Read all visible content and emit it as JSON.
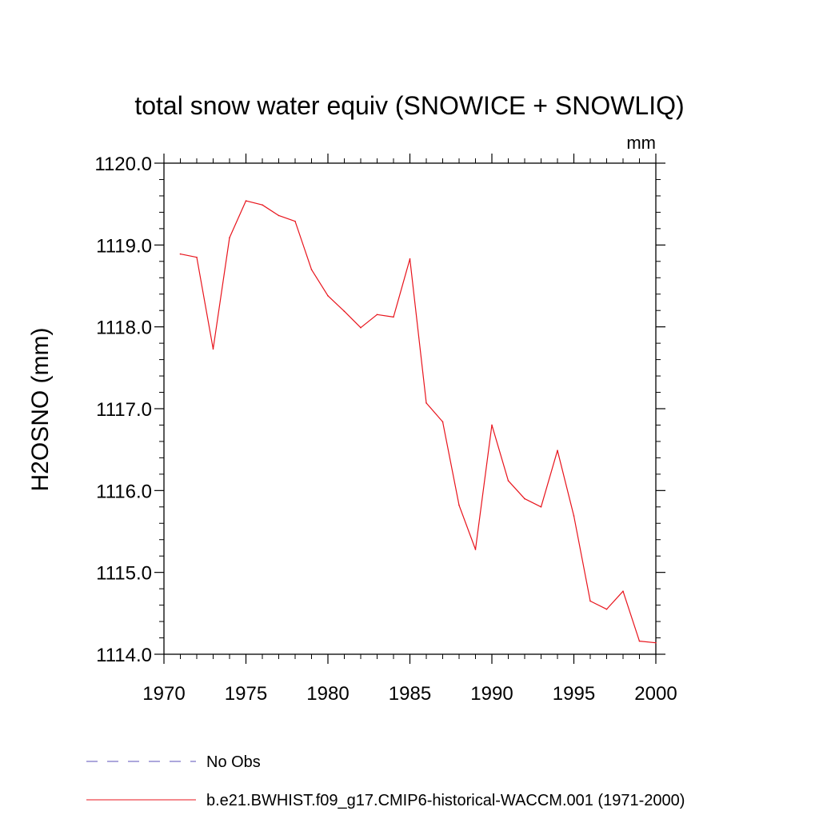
{
  "chart_data": {
    "type": "line",
    "title": "total snow water equiv (SNOWICE + SNOWLIQ)",
    "units": "mm",
    "xlabel": "",
    "ylabel": "H2OSNO  (mm)",
    "xlim": [
      1970,
      2000
    ],
    "ylim": [
      1114.0,
      1120.0
    ],
    "x_ticks": [
      1970,
      1975,
      1980,
      1985,
      1990,
      1995,
      2000
    ],
    "x_tick_labels": [
      "1970",
      "1975",
      "1980",
      "1985",
      "1990",
      "1995",
      "2000"
    ],
    "y_ticks": [
      1114.0,
      1115.0,
      1116.0,
      1117.0,
      1118.0,
      1119.0,
      1120.0
    ],
    "y_tick_labels": [
      "1114.0",
      "1115.0",
      "1116.0",
      "1117.0",
      "1118.0",
      "1119.0",
      "1120.0"
    ],
    "grid": false,
    "legend_position": "bottom",
    "series": [
      {
        "name": "No Obs",
        "color": "#5b4fb8",
        "style": "dashed",
        "x": [],
        "values": []
      },
      {
        "name": "b.e21.BWHIST.f09_g17.CMIP6-historical-WACCM.001 (1971-2000)",
        "color": "#e8141c",
        "style": "solid",
        "x": [
          1971,
          1972,
          1973,
          1974,
          1975,
          1976,
          1977,
          1978,
          1979,
          1980,
          1981,
          1982,
          1983,
          1984,
          1985,
          1986,
          1987,
          1988,
          1989,
          1990,
          1991,
          1992,
          1993,
          1994,
          1995,
          1996,
          1997,
          1998,
          1999,
          2000
        ],
        "values": [
          1118.89,
          1118.85,
          1117.73,
          1119.09,
          1119.54,
          1119.49,
          1119.36,
          1119.29,
          1118.7,
          1118.38,
          1118.19,
          1117.99,
          1118.15,
          1118.12,
          1118.83,
          1117.07,
          1116.84,
          1115.82,
          1115.28,
          1116.8,
          1116.12,
          1115.9,
          1115.8,
          1116.49,
          1115.69,
          1114.65,
          1114.55,
          1114.77,
          1114.16,
          1114.14
        ]
      }
    ]
  }
}
